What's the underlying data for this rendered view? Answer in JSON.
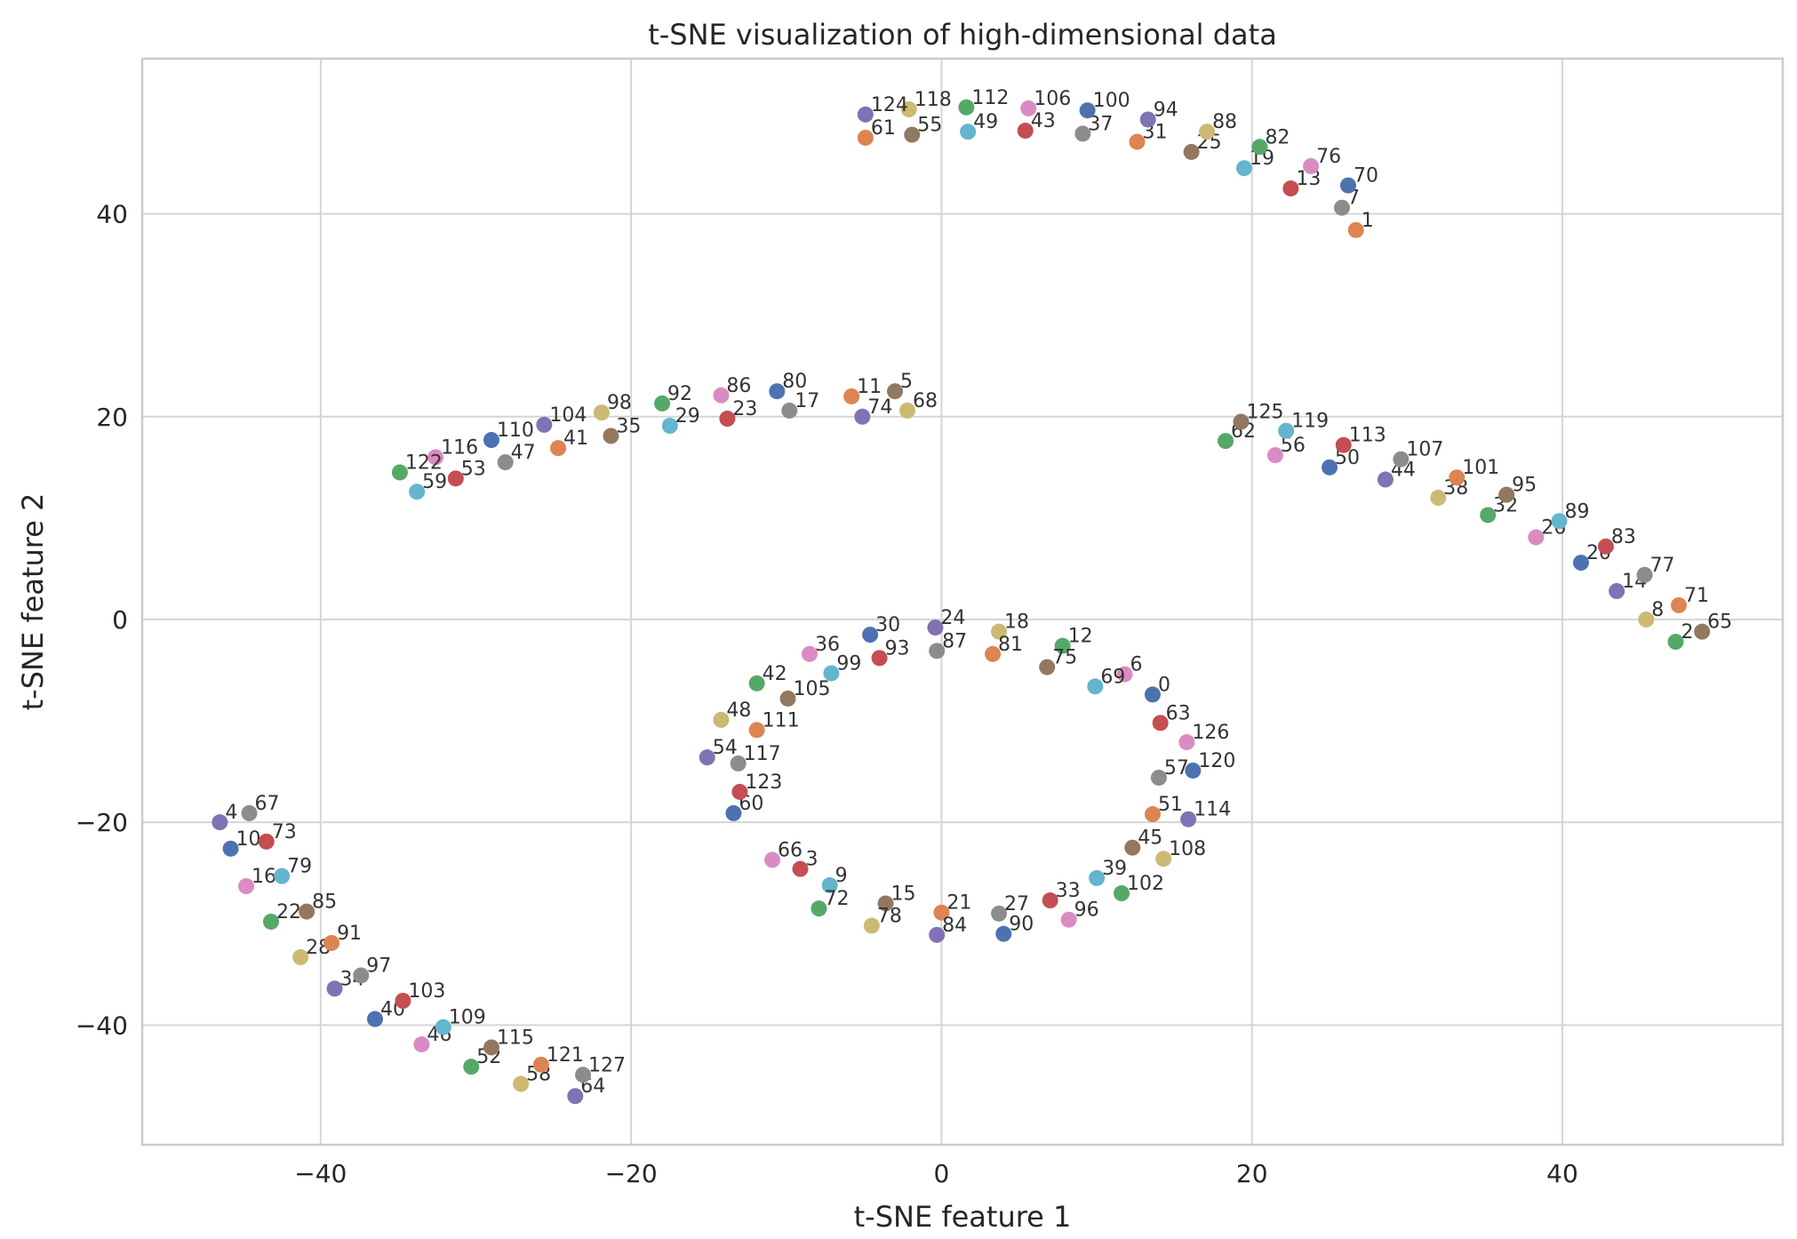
{
  "chart_data": {
    "type": "scatter",
    "title": "t-SNE visualization of high-dimensional data",
    "xlabel": "t-SNE feature 1",
    "ylabel": "t-SNE feature 2",
    "xlim": [
      -51.5,
      54.2
    ],
    "ylim": [
      -51.8,
      55.3
    ],
    "xticks": [
      -40,
      -20,
      0,
      20,
      40
    ],
    "yticks": [
      -40,
      -20,
      0,
      20,
      40
    ],
    "xtick_labels": [
      "−40",
      "−20",
      "0",
      "20",
      "40"
    ],
    "ytick_labels": [
      "−40",
      "−20",
      "0",
      "20",
      "40"
    ],
    "grid": true,
    "colors": [
      "#4c72b0",
      "#dd8452",
      "#55a868",
      "#c44e52",
      "#8172b3",
      "#937860",
      "#da8bc3",
      "#8c8c8c",
      "#ccb974",
      "#64b5cd"
    ],
    "points": [
      {
        "label": "0",
        "x": 13.6,
        "y": -7.4
      },
      {
        "label": "1",
        "x": 26.7,
        "y": 38.4
      },
      {
        "label": "2",
        "x": 47.3,
        "y": -2.2
      },
      {
        "label": "3",
        "x": -9.1,
        "y": -24.6
      },
      {
        "label": "4",
        "x": -46.5,
        "y": -20.0
      },
      {
        "label": "5",
        "x": -3.0,
        "y": 22.5
      },
      {
        "label": "6",
        "x": 11.8,
        "y": -5.4
      },
      {
        "label": "7",
        "x": 25.8,
        "y": 40.6
      },
      {
        "label": "8",
        "x": 45.4,
        "y": 0.0
      },
      {
        "label": "9",
        "x": -7.2,
        "y": -26.2
      },
      {
        "label": "10",
        "x": -45.8,
        "y": -22.6
      },
      {
        "label": "11",
        "x": -5.8,
        "y": 22.0
      },
      {
        "label": "12",
        "x": 7.8,
        "y": -2.6
      },
      {
        "label": "13",
        "x": 22.5,
        "y": 42.5
      },
      {
        "label": "14",
        "x": 43.5,
        "y": 2.8
      },
      {
        "label": "15",
        "x": -3.6,
        "y": -28.0
      },
      {
        "label": "16",
        "x": -44.8,
        "y": -26.3
      },
      {
        "label": "17",
        "x": -9.8,
        "y": 20.6
      },
      {
        "label": "18",
        "x": 3.7,
        "y": -1.2
      },
      {
        "label": "19",
        "x": 19.5,
        "y": 44.5
      },
      {
        "label": "20",
        "x": 41.2,
        "y": 5.6
      },
      {
        "label": "21",
        "x": 0.0,
        "y": -28.9
      },
      {
        "label": "22",
        "x": -43.2,
        "y": -29.8
      },
      {
        "label": "23",
        "x": -13.8,
        "y": 19.8
      },
      {
        "label": "24",
        "x": -0.4,
        "y": -0.8
      },
      {
        "label": "25",
        "x": 16.1,
        "y": 46.1
      },
      {
        "label": "26",
        "x": 38.3,
        "y": 8.1
      },
      {
        "label": "27",
        "x": 3.7,
        "y": -29.0
      },
      {
        "label": "28",
        "x": -41.3,
        "y": -33.3
      },
      {
        "label": "29",
        "x": -17.5,
        "y": 19.1
      },
      {
        "label": "30",
        "x": -4.6,
        "y": -1.5
      },
      {
        "label": "31",
        "x": 12.6,
        "y": 47.1
      },
      {
        "label": "32",
        "x": 35.2,
        "y": 10.3
      },
      {
        "label": "33",
        "x": 7.0,
        "y": -27.7
      },
      {
        "label": "34",
        "x": -39.1,
        "y": -36.4
      },
      {
        "label": "35",
        "x": -21.3,
        "y": 18.1
      },
      {
        "label": "36",
        "x": -8.5,
        "y": -3.4
      },
      {
        "label": "37",
        "x": 9.1,
        "y": 47.9
      },
      {
        "label": "38",
        "x": 32.0,
        "y": 12.0
      },
      {
        "label": "39",
        "x": 10.0,
        "y": -25.5
      },
      {
        "label": "40",
        "x": -36.5,
        "y": -39.4
      },
      {
        "label": "41",
        "x": -24.7,
        "y": 16.9
      },
      {
        "label": "42",
        "x": -11.9,
        "y": -6.3
      },
      {
        "label": "43",
        "x": 5.4,
        "y": 48.2
      },
      {
        "label": "44",
        "x": 28.6,
        "y": 13.8
      },
      {
        "label": "45",
        "x": 12.3,
        "y": -22.5
      },
      {
        "label": "46",
        "x": -33.5,
        "y": -41.9
      },
      {
        "label": "47",
        "x": -28.1,
        "y": 15.5
      },
      {
        "label": "48",
        "x": -14.2,
        "y": -9.9
      },
      {
        "label": "49",
        "x": 1.7,
        "y": 48.1
      },
      {
        "label": "50",
        "x": 25.0,
        "y": 15.0
      },
      {
        "label": "51",
        "x": 13.6,
        "y": -19.2
      },
      {
        "label": "52",
        "x": -30.3,
        "y": -44.1
      },
      {
        "label": "53",
        "x": -31.3,
        "y": 13.9
      },
      {
        "label": "54",
        "x": -15.1,
        "y": -13.6
      },
      {
        "label": "55",
        "x": -1.9,
        "y": 47.8
      },
      {
        "label": "56",
        "x": 21.5,
        "y": 16.2
      },
      {
        "label": "57",
        "x": 14.0,
        "y": -15.6
      },
      {
        "label": "58",
        "x": -27.1,
        "y": -45.8
      },
      {
        "label": "59",
        "x": -33.8,
        "y": 12.6
      },
      {
        "label": "60",
        "x": -13.4,
        "y": -19.1
      },
      {
        "label": "61",
        "x": -4.9,
        "y": 47.5
      },
      {
        "label": "62",
        "x": 18.3,
        "y": 17.6
      },
      {
        "label": "63",
        "x": 14.1,
        "y": -10.2
      },
      {
        "label": "64",
        "x": -23.6,
        "y": -47.0
      },
      {
        "label": "65",
        "x": 49.0,
        "y": -1.2
      },
      {
        "label": "66",
        "x": -10.9,
        "y": -23.7
      },
      {
        "label": "67",
        "x": -44.6,
        "y": -19.1
      },
      {
        "label": "68",
        "x": -2.2,
        "y": 20.6
      },
      {
        "label": "69",
        "x": 9.9,
        "y": -6.6
      },
      {
        "label": "70",
        "x": 26.2,
        "y": 42.8
      },
      {
        "label": "71",
        "x": 47.5,
        "y": 1.4
      },
      {
        "label": "72",
        "x": -7.9,
        "y": -28.5
      },
      {
        "label": "73",
        "x": -43.5,
        "y": -21.9
      },
      {
        "label": "74",
        "x": -5.1,
        "y": 20.0
      },
      {
        "label": "75",
        "x": 6.8,
        "y": -4.7
      },
      {
        "label": "76",
        "x": 23.8,
        "y": 44.7
      },
      {
        "label": "77",
        "x": 45.3,
        "y": 4.4
      },
      {
        "label": "78",
        "x": -4.5,
        "y": -30.2
      },
      {
        "label": "79",
        "x": -42.5,
        "y": -25.3
      },
      {
        "label": "80",
        "x": -10.6,
        "y": 22.5
      },
      {
        "label": "81",
        "x": 3.3,
        "y": -3.4
      },
      {
        "label": "82",
        "x": 20.5,
        "y": 46.6
      },
      {
        "label": "83",
        "x": 42.8,
        "y": 7.2
      },
      {
        "label": "84",
        "x": -0.3,
        "y": -31.1
      },
      {
        "label": "85",
        "x": -40.9,
        "y": -28.8
      },
      {
        "label": "86",
        "x": -14.2,
        "y": 22.1
      },
      {
        "label": "87",
        "x": -0.3,
        "y": -3.1
      },
      {
        "label": "88",
        "x": 17.1,
        "y": 48.1
      },
      {
        "label": "89",
        "x": 39.8,
        "y": 9.7
      },
      {
        "label": "90",
        "x": 4.0,
        "y": -31.0
      },
      {
        "label": "91",
        "x": -39.3,
        "y": -31.9
      },
      {
        "label": "92",
        "x": -18.0,
        "y": 21.3
      },
      {
        "label": "93",
        "x": -4.0,
        "y": -3.8
      },
      {
        "label": "94",
        "x": 13.3,
        "y": 49.3
      },
      {
        "label": "95",
        "x": 36.4,
        "y": 12.3
      },
      {
        "label": "96",
        "x": 8.2,
        "y": -29.6
      },
      {
        "label": "97",
        "x": -37.4,
        "y": -35.1
      },
      {
        "label": "98",
        "x": -21.9,
        "y": 20.4
      },
      {
        "label": "99",
        "x": -7.1,
        "y": -5.3
      },
      {
        "label": "100",
        "x": 9.4,
        "y": 50.2
      },
      {
        "label": "101",
        "x": 33.2,
        "y": 14.0
      },
      {
        "label": "102",
        "x": 11.6,
        "y": -27.0
      },
      {
        "label": "103",
        "x": -34.7,
        "y": -37.6
      },
      {
        "label": "104",
        "x": -25.6,
        "y": 19.2
      },
      {
        "label": "105",
        "x": -9.9,
        "y": -7.8
      },
      {
        "label": "106",
        "x": 5.6,
        "y": 50.4
      },
      {
        "label": "107",
        "x": 29.6,
        "y": 15.8
      },
      {
        "label": "108",
        "x": 14.3,
        "y": -23.6
      },
      {
        "label": "109",
        "x": -32.1,
        "y": -40.2
      },
      {
        "label": "110",
        "x": -29.0,
        "y": 17.7
      },
      {
        "label": "111",
        "x": -11.9,
        "y": -10.9
      },
      {
        "label": "112",
        "x": 1.6,
        "y": 50.5
      },
      {
        "label": "113",
        "x": 25.9,
        "y": 17.2
      },
      {
        "label": "114",
        "x": 15.9,
        "y": -19.7
      },
      {
        "label": "115",
        "x": -29.0,
        "y": -42.2
      },
      {
        "label": "116",
        "x": -32.6,
        "y": 16.0
      },
      {
        "label": "117",
        "x": -13.1,
        "y": -14.2
      },
      {
        "label": "118",
        "x": -2.1,
        "y": 50.3
      },
      {
        "label": "119",
        "x": 22.2,
        "y": 18.6
      },
      {
        "label": "120",
        "x": 16.2,
        "y": -14.9
      },
      {
        "label": "121",
        "x": -25.8,
        "y": -43.9
      },
      {
        "label": "122",
        "x": -34.9,
        "y": 14.5
      },
      {
        "label": "123",
        "x": -13.0,
        "y": -17.0
      },
      {
        "label": "124",
        "x": -4.9,
        "y": 49.8
      },
      {
        "label": "125",
        "x": 19.3,
        "y": 19.5
      },
      {
        "label": "126",
        "x": 15.8,
        "y": -12.1
      },
      {
        "label": "127",
        "x": -23.1,
        "y": -44.9
      }
    ]
  }
}
